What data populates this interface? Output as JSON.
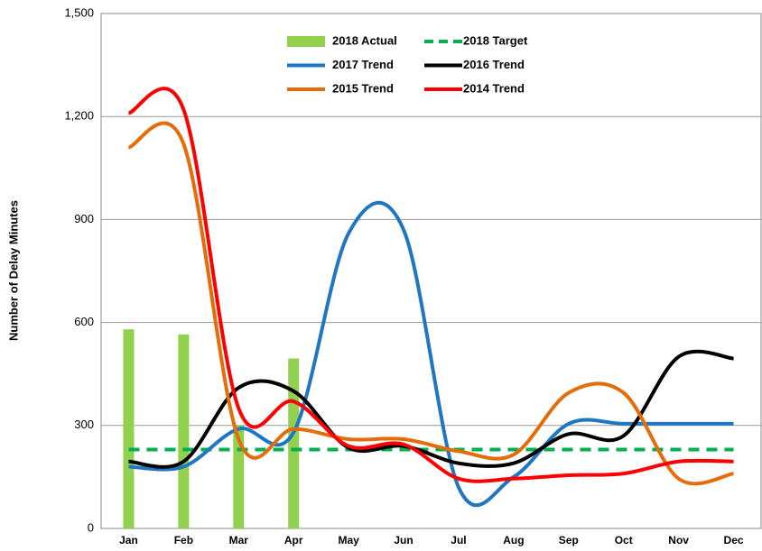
{
  "chart_data": {
    "type": "line",
    "y_label": "Number of Delay Minutes",
    "categories": [
      "Jan",
      "Feb",
      "Mar",
      "Apr",
      "May",
      "Jun",
      "Jul",
      "Aug",
      "Sep",
      "Oct",
      "Nov",
      "Dec"
    ],
    "ylim": [
      0,
      1500
    ],
    "yticks": [
      0,
      300,
      600,
      900,
      {
        "value": 1200,
        "label": "1,200"
      },
      {
        "value": 1500,
        "label": "1,500"
      }
    ],
    "grid": true,
    "legend": "top",
    "series": [
      {
        "name": "2018 Actual",
        "kind": "bar",
        "color": "#92d050",
        "values": [
          580,
          565,
          300,
          495,
          null,
          null,
          null,
          null,
          null,
          null,
          null,
          null
        ]
      },
      {
        "name": "2018 Target",
        "kind": "dashed",
        "color": "#00b050",
        "values": [
          230,
          230,
          230,
          230,
          230,
          230,
          230,
          230,
          230,
          230,
          230,
          230
        ]
      },
      {
        "name": "2017 Trend",
        "kind": "line",
        "color": "#1f77c4",
        "values": [
          180,
          180,
          290,
          280,
          860,
          870,
          120,
          150,
          305,
          305,
          305,
          305
        ]
      },
      {
        "name": "2016 Trend",
        "kind": "line",
        "color": "#000000",
        "values": [
          195,
          195,
          410,
          400,
          235,
          240,
          190,
          190,
          275,
          270,
          500,
          495
        ]
      },
      {
        "name": "2015 Trend",
        "kind": "line",
        "color": "#e46c0a",
        "values": [
          1110,
          1120,
          260,
          290,
          260,
          260,
          225,
          215,
          395,
          395,
          145,
          160
        ]
      },
      {
        "name": "2014 Trend",
        "kind": "line",
        "color": "#ff0000",
        "values": [
          1210,
          1220,
          350,
          370,
          240,
          245,
          145,
          145,
          155,
          160,
          195,
          195
        ]
      }
    ]
  }
}
